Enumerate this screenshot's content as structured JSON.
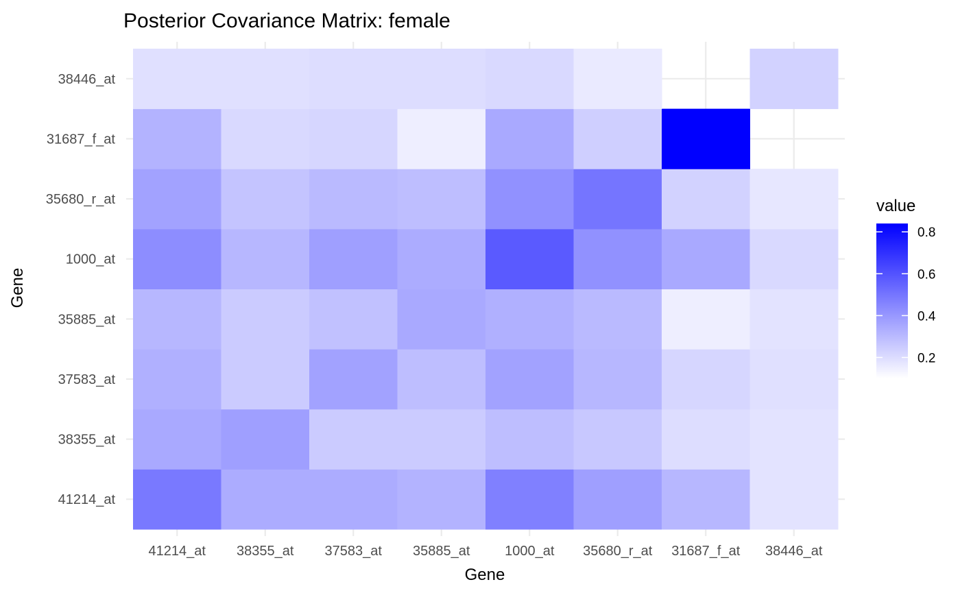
{
  "chart_data": {
    "type": "heatmap",
    "title": "Posterior Covariance Matrix: female",
    "xlabel": "Gene",
    "ylabel": "Gene",
    "x_categories": [
      "41214_at",
      "38355_at",
      "37583_at",
      "35885_at",
      "1000_at",
      "35680_r_at",
      "31687_f_at",
      "38446_at"
    ],
    "y_categories": [
      "41214_at",
      "38355_at",
      "37583_at",
      "35885_at",
      "1000_at",
      "35680_r_at",
      "31687_f_at",
      "38446_at"
    ],
    "values": [
      [
        0.49,
        0.34,
        0.34,
        0.32,
        0.47,
        0.38,
        0.31,
        0.18
      ],
      [
        0.35,
        0.38,
        0.25,
        0.25,
        0.29,
        0.26,
        0.2,
        0.18
      ],
      [
        0.33,
        0.25,
        0.37,
        0.29,
        0.37,
        0.31,
        0.22,
        0.19
      ],
      [
        0.31,
        0.25,
        0.28,
        0.35,
        0.33,
        0.3,
        0.15,
        0.18
      ],
      [
        0.43,
        0.31,
        0.38,
        0.34,
        0.58,
        0.42,
        0.35,
        0.21
      ],
      [
        0.37,
        0.27,
        0.3,
        0.29,
        0.42,
        0.5,
        0.23,
        0.17
      ],
      [
        0.32,
        0.21,
        0.22,
        0.15,
        0.35,
        0.24,
        0.84,
        null
      ],
      [
        0.19,
        0.19,
        0.2,
        0.2,
        0.21,
        0.16,
        null,
        0.23
      ]
    ],
    "color_scale": {
      "low": "#ffffff",
      "high": "#0000ff",
      "min": 0.1,
      "max": 0.84
    },
    "legend": {
      "title": "value",
      "ticks": [
        0.2,
        0.4,
        0.6,
        0.8
      ],
      "tick_labels": [
        "0.2",
        "0.4",
        "0.6",
        "0.8"
      ],
      "position": "right"
    },
    "grid": true
  }
}
